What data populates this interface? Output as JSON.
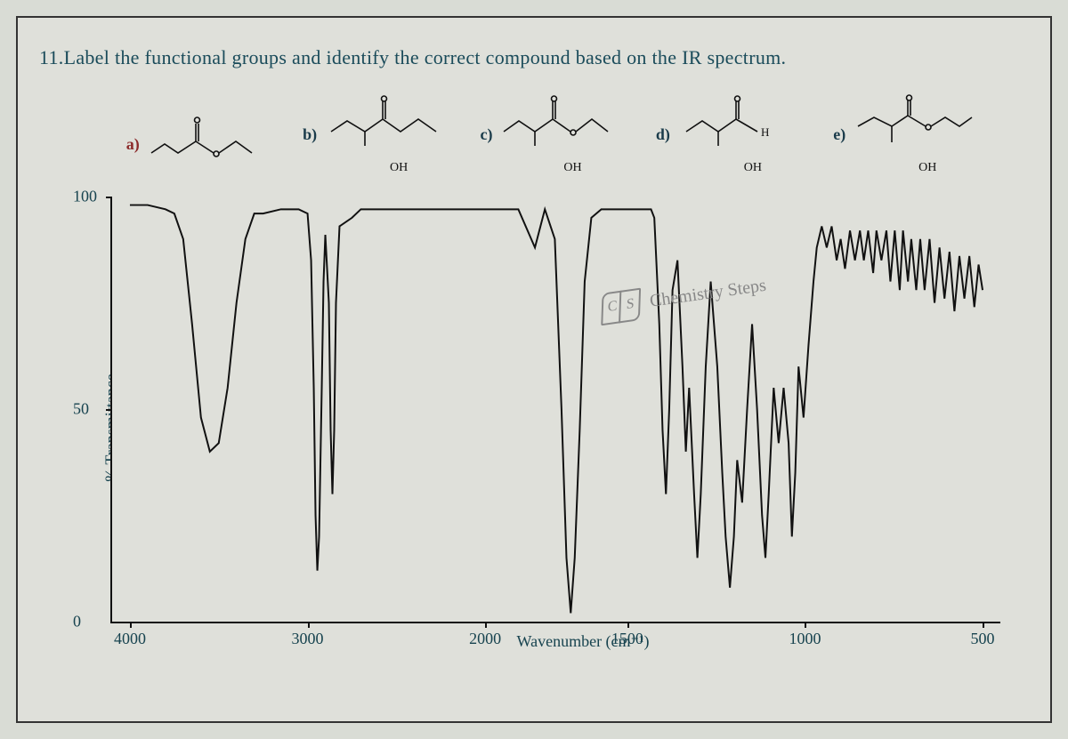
{
  "question": "11.Label the functional groups and identify the correct compound based on the IR spectrum.",
  "options": {
    "a": {
      "label": "a)",
      "label_color": "red",
      "has_oh": false
    },
    "b": {
      "label": "b)",
      "label_color": "default",
      "has_oh": true,
      "oh_text": "OH"
    },
    "c": {
      "label": "c)",
      "label_color": "default",
      "has_oh": true,
      "oh_text": "OH"
    },
    "d": {
      "label": "d)",
      "label_color": "default",
      "has_oh": true,
      "oh_text": "OH",
      "h_text": "H"
    },
    "e": {
      "label": "e)",
      "label_color": "default",
      "has_oh": true,
      "oh_text": "OH"
    }
  },
  "chart": {
    "type": "line",
    "ylabel": "% Transmittance",
    "xlabel": "Wavenumber (cm⁻¹)",
    "xlim": [
      4000,
      500
    ],
    "ylim": [
      0,
      100
    ],
    "yticks": [
      0,
      50,
      100
    ],
    "xticks": [
      4000,
      3000,
      2000,
      1500,
      1000,
      500
    ],
    "line_color": "#111111",
    "line_width": 2,
    "background_color": "#dfe0da",
    "axis_color": "#111111",
    "label_color": "#17434f",
    "label_fontsize": 18,
    "watermark_text": "Chemistry Steps",
    "watermark_color": "#888888",
    "spectrum": [
      [
        4000,
        98
      ],
      [
        3900,
        98
      ],
      [
        3800,
        97
      ],
      [
        3750,
        96
      ],
      [
        3700,
        90
      ],
      [
        3650,
        70
      ],
      [
        3600,
        48
      ],
      [
        3550,
        40
      ],
      [
        3500,
        42
      ],
      [
        3450,
        55
      ],
      [
        3400,
        75
      ],
      [
        3350,
        90
      ],
      [
        3300,
        96
      ],
      [
        3250,
        96
      ],
      [
        3150,
        97
      ],
      [
        3100,
        97
      ],
      [
        3050,
        97
      ],
      [
        3000,
        96
      ],
      [
        2980,
        85
      ],
      [
        2965,
        55
      ],
      [
        2955,
        25
      ],
      [
        2945,
        12
      ],
      [
        2935,
        20
      ],
      [
        2920,
        55
      ],
      [
        2910,
        80
      ],
      [
        2900,
        91
      ],
      [
        2880,
        75
      ],
      [
        2870,
        45
      ],
      [
        2860,
        30
      ],
      [
        2850,
        45
      ],
      [
        2840,
        75
      ],
      [
        2820,
        93
      ],
      [
        2750,
        95
      ],
      [
        2700,
        97
      ],
      [
        2600,
        97
      ],
      [
        2500,
        97
      ],
      [
        2400,
        97
      ],
      [
        2300,
        97
      ],
      [
        2200,
        97
      ],
      [
        2100,
        97
      ],
      [
        2050,
        97
      ],
      [
        2000,
        97
      ],
      [
        1950,
        97
      ],
      [
        1900,
        97
      ],
      [
        1850,
        88
      ],
      [
        1820,
        97
      ],
      [
        1790,
        90
      ],
      [
        1770,
        50
      ],
      [
        1755,
        15
      ],
      [
        1742,
        2
      ],
      [
        1730,
        15
      ],
      [
        1715,
        45
      ],
      [
        1700,
        80
      ],
      [
        1680,
        95
      ],
      [
        1650,
        97
      ],
      [
        1600,
        97
      ],
      [
        1560,
        97
      ],
      [
        1540,
        97
      ],
      [
        1520,
        97
      ],
      [
        1500,
        97
      ],
      [
        1490,
        95
      ],
      [
        1475,
        70
      ],
      [
        1465,
        45
      ],
      [
        1455,
        30
      ],
      [
        1445,
        50
      ],
      [
        1435,
        78
      ],
      [
        1420,
        85
      ],
      [
        1405,
        60
      ],
      [
        1395,
        40
      ],
      [
        1385,
        55
      ],
      [
        1370,
        30
      ],
      [
        1360,
        15
      ],
      [
        1350,
        30
      ],
      [
        1335,
        60
      ],
      [
        1320,
        80
      ],
      [
        1300,
        60
      ],
      [
        1285,
        35
      ],
      [
        1275,
        20
      ],
      [
        1262,
        8
      ],
      [
        1250,
        20
      ],
      [
        1240,
        38
      ],
      [
        1225,
        28
      ],
      [
        1210,
        50
      ],
      [
        1195,
        70
      ],
      [
        1180,
        50
      ],
      [
        1165,
        25
      ],
      [
        1155,
        15
      ],
      [
        1145,
        30
      ],
      [
        1130,
        55
      ],
      [
        1115,
        42
      ],
      [
        1100,
        55
      ],
      [
        1085,
        42
      ],
      [
        1075,
        20
      ],
      [
        1065,
        35
      ],
      [
        1055,
        60
      ],
      [
        1040,
        48
      ],
      [
        1025,
        65
      ],
      [
        1010,
        80
      ],
      [
        1000,
        88
      ],
      [
        985,
        93
      ],
      [
        970,
        88
      ],
      [
        955,
        93
      ],
      [
        940,
        85
      ],
      [
        928,
        90
      ],
      [
        915,
        83
      ],
      [
        900,
        92
      ],
      [
        885,
        85
      ],
      [
        870,
        92
      ],
      [
        858,
        85
      ],
      [
        845,
        92
      ],
      [
        830,
        82
      ],
      [
        820,
        92
      ],
      [
        805,
        85
      ],
      [
        790,
        92
      ],
      [
        778,
        80
      ],
      [
        765,
        92
      ],
      [
        750,
        78
      ],
      [
        740,
        92
      ],
      [
        725,
        80
      ],
      [
        715,
        90
      ],
      [
        700,
        78
      ],
      [
        688,
        90
      ],
      [
        675,
        78
      ],
      [
        660,
        90
      ],
      [
        645,
        75
      ],
      [
        630,
        88
      ],
      [
        615,
        76
      ],
      [
        600,
        87
      ],
      [
        585,
        73
      ],
      [
        570,
        86
      ],
      [
        555,
        76
      ],
      [
        540,
        86
      ],
      [
        525,
        74
      ],
      [
        512,
        84
      ],
      [
        500,
        78
      ]
    ]
  },
  "structures": {
    "stroke": "#111111",
    "stroke_width": 1.6,
    "carbonyl_double_bond_gap": 3
  }
}
